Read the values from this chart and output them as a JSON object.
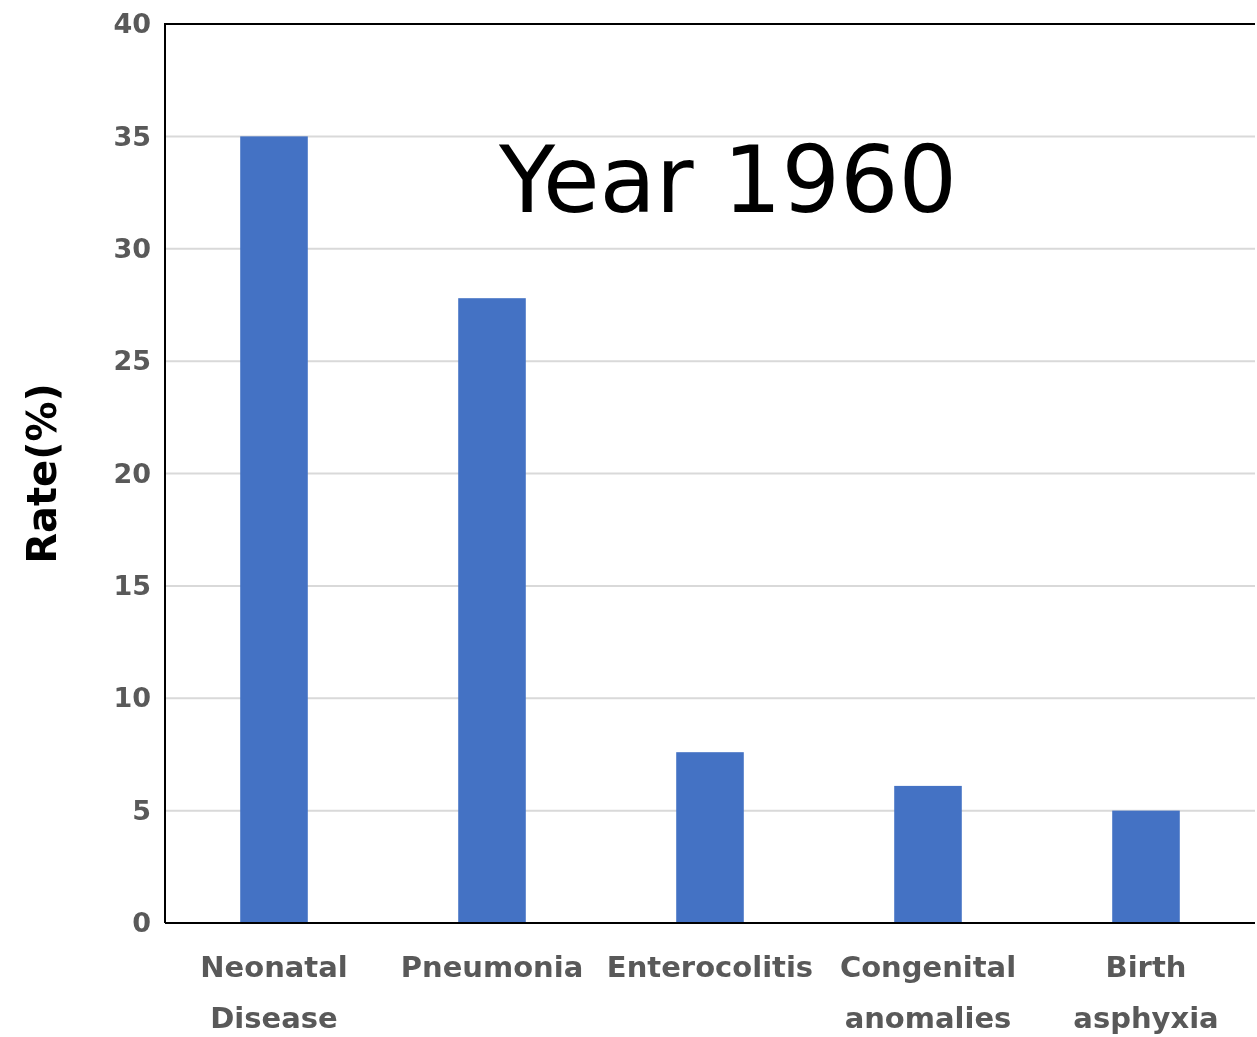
{
  "chart_data": {
    "type": "bar",
    "title": "Year 1960",
    "ylabel": "Rate(%)",
    "categories": [
      "Neonatal Disease",
      "Pneumonia",
      "Enterocolitis",
      "Congenital anomalies",
      "Birth asphyxia"
    ],
    "values": [
      35,
      27.8,
      7.6,
      6.1,
      5.0
    ],
    "color": "#4472c4",
    "ylim": [
      0,
      40
    ],
    "yticks": [
      0,
      5,
      10,
      15,
      20,
      25,
      30,
      35,
      40
    ],
    "grid": "y"
  }
}
